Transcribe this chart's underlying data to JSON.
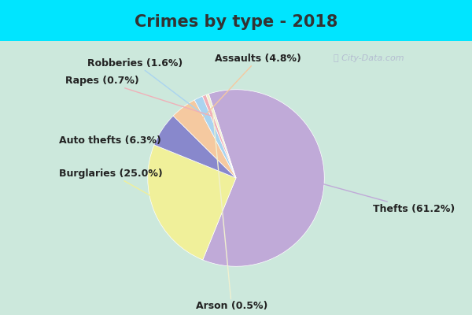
{
  "title": "Crimes by type - 2018",
  "labels": [
    "Thefts",
    "Burglaries",
    "Auto thefts",
    "Assaults",
    "Robberies",
    "Rapes",
    "Arson"
  ],
  "values": [
    61.2,
    25.0,
    6.3,
    4.8,
    1.6,
    0.7,
    0.5
  ],
  "colors": [
    "#c0aad8",
    "#f0f09a",
    "#8888cc",
    "#f5c9a0",
    "#aad4f0",
    "#f0b0b8",
    "#f0f0d0"
  ],
  "background_cyan": "#00e5ff",
  "background_green": "#cce8dc",
  "title_fontsize": 15,
  "title_color": "#333333",
  "label_fontsize": 9,
  "startangle": 108,
  "watermark": "City-Data.com"
}
